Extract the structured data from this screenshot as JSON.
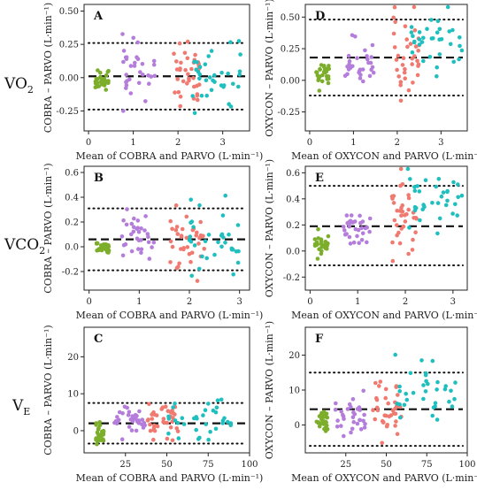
{
  "row_labels": [
    {
      "main": "VO",
      "sub": "2"
    },
    {
      "main": "VCO",
      "sub": "2"
    },
    {
      "main": "V",
      "sub": "E"
    }
  ],
  "colors": {
    "cluster1": "#7cae2b",
    "cluster2": "#b57ddb",
    "cluster3": "#f07a70",
    "cluster4": "#1fbfbf"
  },
  "chart_data": [
    {
      "type": "scatter",
      "panel": "A",
      "xlabel": "Mean of COBRA and PARVO (L·min⁻¹)",
      "ylabel": "COBRA – PARVO (L·min⁻¹)",
      "xlim": [
        -0.1,
        3.6
      ],
      "ylim": [
        -0.4,
        0.55
      ],
      "xticks": [
        0,
        1,
        2,
        3
      ],
      "yticks": [
        -0.25,
        0,
        0.25,
        0.5
      ],
      "ytick_labels": [
        "-0.25",
        "0.00",
        "0.25",
        "0.50"
      ],
      "bias": 0.01,
      "loa": [
        -0.24,
        0.26
      ],
      "clusters": [
        {
          "color": "cluster1",
          "x_range": [
            0.15,
            0.45
          ],
          "y_mean": 0.0,
          "y_sd": 0.04,
          "n": 28
        },
        {
          "color": "cluster2",
          "x_range": [
            0.7,
            1.5
          ],
          "y_mean": 0.05,
          "y_sd": 0.12,
          "n": 32
        },
        {
          "color": "cluster3",
          "x_range": [
            1.9,
            2.5
          ],
          "y_mean": 0.03,
          "y_sd": 0.14,
          "n": 38
        },
        {
          "color": "cluster4",
          "x_range": [
            2.3,
            3.4
          ],
          "y_mean": -0.02,
          "y_sd": 0.11,
          "n": 34
        }
      ]
    },
    {
      "type": "scatter",
      "panel": "D",
      "xlabel": "Mean of OXYCON and PARVO (L·min⁻¹)",
      "ylabel": "OXYCON – PARVO (L·min⁻¹)",
      "xlim": [
        -0.1,
        3.6
      ],
      "ylim": [
        -0.4,
        0.6
      ],
      "xticks": [
        0,
        1,
        2,
        3
      ],
      "yticks": [
        -0.25,
        0,
        0.25,
        0.5
      ],
      "ytick_labels": [
        "-0.25",
        "0.00",
        "0.25",
        "0.50"
      ],
      "bias": 0.18,
      "loa": [
        -0.12,
        0.48
      ],
      "clusters": [
        {
          "color": "cluster1",
          "x_range": [
            0.15,
            0.45
          ],
          "y_mean": 0.05,
          "y_sd": 0.05,
          "n": 28
        },
        {
          "color": "cluster2",
          "x_range": [
            0.8,
            1.5
          ],
          "y_mean": 0.14,
          "y_sd": 0.08,
          "n": 30
        },
        {
          "color": "cluster3",
          "x_range": [
            1.9,
            2.5
          ],
          "y_mean": 0.22,
          "y_sd": 0.15,
          "n": 36
        },
        {
          "color": "cluster4",
          "x_range": [
            2.3,
            3.5
          ],
          "y_mean": 0.3,
          "y_sd": 0.1,
          "n": 34
        }
      ]
    },
    {
      "type": "scatter",
      "panel": "B",
      "xlabel": "Mean of COBRA and PARVO (L·min⁻¹)",
      "ylabel": "COBRA – PARVO (L·min⁻¹)",
      "xlim": [
        -0.1,
        3.2
      ],
      "ylim": [
        -0.35,
        0.65
      ],
      "xticks": [
        0,
        1,
        2,
        3
      ],
      "yticks": [
        -0.2,
        0,
        0.2,
        0.4,
        0.6
      ],
      "ytick_labels": [
        "-0.2",
        "0.0",
        "0.2",
        "0.4",
        "0.6"
      ],
      "bias": 0.06,
      "loa": [
        -0.19,
        0.31
      ],
      "clusters": [
        {
          "color": "cluster1",
          "x_range": [
            0.15,
            0.4
          ],
          "y_mean": 0.0,
          "y_sd": 0.03,
          "n": 28
        },
        {
          "color": "cluster2",
          "x_range": [
            0.6,
            1.3
          ],
          "y_mean": 0.08,
          "y_sd": 0.12,
          "n": 32
        },
        {
          "color": "cluster3",
          "x_range": [
            1.6,
            2.3
          ],
          "y_mean": 0.08,
          "y_sd": 0.14,
          "n": 38
        },
        {
          "color": "cluster4",
          "x_range": [
            2.0,
            3.0
          ],
          "y_mean": 0.06,
          "y_sd": 0.13,
          "n": 34
        }
      ]
    },
    {
      "type": "scatter",
      "panel": "E",
      "xlabel": "Mean of OXYCON and PARVO (L·min⁻¹)",
      "ylabel": "OXYCON – PARVO (L·min⁻¹)",
      "xlim": [
        -0.1,
        3.3
      ],
      "ylim": [
        -0.3,
        0.65
      ],
      "xticks": [
        0,
        1,
        2,
        3
      ],
      "yticks": [
        -0.2,
        0,
        0.2,
        0.4,
        0.6
      ],
      "ytick_labels": [
        "-0.2",
        "0.0",
        "0.2",
        "0.4",
        "0.6"
      ],
      "bias": 0.19,
      "loa": [
        -0.11,
        0.5
      ],
      "clusters": [
        {
          "color": "cluster1",
          "x_range": [
            0.1,
            0.4
          ],
          "y_mean": 0.05,
          "y_sd": 0.04,
          "n": 28
        },
        {
          "color": "cluster2",
          "x_range": [
            0.7,
            1.3
          ],
          "y_mean": 0.17,
          "y_sd": 0.07,
          "n": 32
        },
        {
          "color": "cluster3",
          "x_range": [
            1.7,
            2.3
          ],
          "y_mean": 0.25,
          "y_sd": 0.15,
          "n": 36
        },
        {
          "color": "cluster4",
          "x_range": [
            2.0,
            3.2
          ],
          "y_mean": 0.38,
          "y_sd": 0.12,
          "n": 34
        }
      ]
    },
    {
      "type": "scatter",
      "panel": "C",
      "xlabel": "Mean of COBRA and PARVO (L·min⁻¹)",
      "ylabel": "COBRA – PARVO (L·min⁻¹)",
      "xlim": [
        0,
        100
      ],
      "ylim": [
        -6,
        28
      ],
      "xticks": [
        25,
        50,
        75,
        100
      ],
      "yticks": [
        0,
        10,
        20
      ],
      "ytick_labels": [
        "0",
        "10",
        "20"
      ],
      "bias": 2.0,
      "loa": [
        -3.5,
        7.5
      ],
      "clusters": [
        {
          "color": "cluster1",
          "x_range": [
            7,
            12
          ],
          "y_mean": -1.0,
          "y_sd": 1.2,
          "n": 28
        },
        {
          "color": "cluster2",
          "x_range": [
            18,
            38
          ],
          "y_mean": 2.5,
          "y_sd": 2.2,
          "n": 32
        },
        {
          "color": "cluster3",
          "x_range": [
            38,
            58
          ],
          "y_mean": 3.0,
          "y_sd": 2.5,
          "n": 38
        },
        {
          "color": "cluster4",
          "x_range": [
            50,
            90
          ],
          "y_mean": 3.0,
          "y_sd": 2.3,
          "n": 34
        }
      ]
    },
    {
      "type": "scatter",
      "panel": "F",
      "xlabel": "Mean of OXYCON and PARVO (L·min⁻¹)",
      "ylabel": "OXYCON – PARVO (L·min⁻¹)",
      "xlim": [
        0,
        100
      ],
      "ylim": [
        -8,
        28
      ],
      "xticks": [
        25,
        50,
        75,
        100
      ],
      "yticks": [
        0,
        10,
        20
      ],
      "ytick_labels": [
        "0",
        "10",
        "20"
      ],
      "bias": 4.5,
      "loa": [
        -6.0,
        15.0
      ],
      "clusters": [
        {
          "color": "cluster1",
          "x_range": [
            7,
            14
          ],
          "y_mean": 0.5,
          "y_sd": 1.5,
          "n": 28
        },
        {
          "color": "cluster2",
          "x_range": [
            18,
            38
          ],
          "y_mean": 2.5,
          "y_sd": 2.5,
          "n": 32
        },
        {
          "color": "cluster3",
          "x_range": [
            40,
            60
          ],
          "y_mean": 6.0,
          "y_sd": 4.5,
          "n": 36
        },
        {
          "color": "cluster4",
          "x_range": [
            55,
            95
          ],
          "y_mean": 9.0,
          "y_sd": 5.0,
          "n": 34
        }
      ]
    }
  ]
}
